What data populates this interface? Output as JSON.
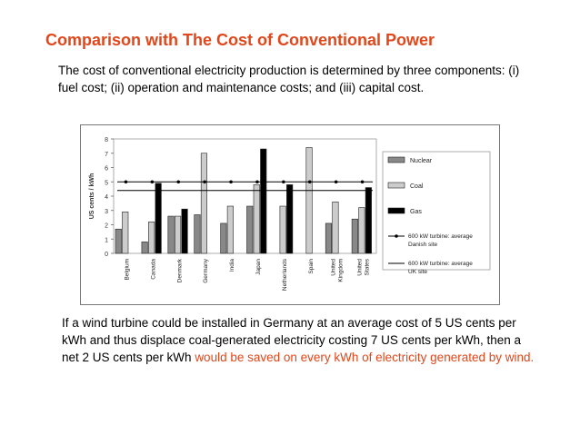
{
  "slide": {
    "title": "Comparison with The Cost of Conventional Power",
    "intro": "The cost of conventional electricity production is determined by three components: (i) fuel cost; (ii) operation and maintenance costs; and (iii) capital cost.",
    "body_plain": "If a wind turbine could be installed in Germany at an average cost of 5 US cents per kWh and thus displace coal-generated electricity costing 7 US cents per kWh, then a net 2 US cents per kWh ",
    "body_highlight": "would be saved on every kWh of electricity generated by wind.",
    "accent_color": "#e0471b"
  },
  "chart_data": {
    "type": "bar",
    "ylabel": "US cents / kWh",
    "ylim": [
      0,
      8
    ],
    "yticks": [
      "0",
      "1",
      "2",
      "3",
      "4",
      "5",
      "6",
      "7",
      "8"
    ],
    "categories": [
      "Belgium",
      "Canada",
      "Denmark",
      "Germany",
      "India",
      "Japan",
      "Netherlands",
      "Spain",
      "United Kingdom",
      "United States"
    ],
    "category_lines": [
      [
        "Belgium"
      ],
      [
        "Canada"
      ],
      [
        "Denmark"
      ],
      [
        "Germany"
      ],
      [
        "India"
      ],
      [
        "Japan"
      ],
      [
        "Netherlands"
      ],
      [
        "Spain"
      ],
      [
        "United",
        "Kingdom"
      ],
      [
        "United",
        "States"
      ]
    ],
    "series": [
      {
        "name": "Nuclear",
        "color": "#888888",
        "values": [
          1.7,
          0.8,
          2.6,
          2.7,
          2.1,
          3.3,
          null,
          null,
          2.1,
          2.4
        ]
      },
      {
        "name": "Coal",
        "color": "#cccccc",
        "values": [
          2.9,
          2.2,
          2.6,
          7.0,
          3.3,
          4.8,
          3.3,
          7.4,
          3.6,
          3.2
        ]
      },
      {
        "name": "Gas",
        "color": "#000000",
        "values": [
          null,
          4.9,
          3.1,
          null,
          null,
          7.3,
          4.8,
          null,
          null,
          4.6
        ]
      }
    ],
    "reference_lines": [
      {
        "name": "600 kW turbine: average Danish site",
        "name_lines": [
          "600 kW turbine: average",
          "Danish site"
        ],
        "value": 5.0,
        "markers": true
      },
      {
        "name": "600 kW turbine: average UK site",
        "name_lines": [
          "600 kW turbine: average",
          "UK site"
        ],
        "value": 4.4,
        "markers": false
      }
    ],
    "legend_position": "right"
  }
}
